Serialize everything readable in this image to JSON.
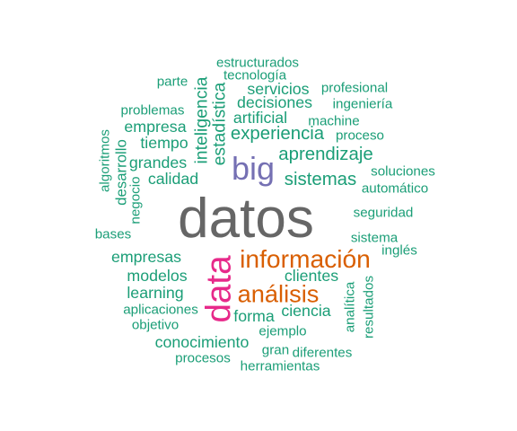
{
  "colors": {
    "teal": "#1b9e77",
    "orange": "#d95f02",
    "purple": "#7570b3",
    "magenta": "#e7298a",
    "gray": "#666666"
  },
  "words": [
    {
      "text": "datos",
      "weight": 1.0,
      "color": "gray",
      "vertical": false
    },
    {
      "text": "data",
      "weight": 0.55,
      "color": "magenta",
      "vertical": true
    },
    {
      "text": "big",
      "weight": 0.5,
      "color": "purple",
      "vertical": false
    },
    {
      "text": "información",
      "weight": 0.35,
      "color": "orange",
      "vertical": false
    },
    {
      "text": "análisis",
      "weight": 0.33,
      "color": "orange",
      "vertical": false
    },
    {
      "text": "sistemas",
      "weight": 0.2,
      "color": "teal",
      "vertical": false
    },
    {
      "text": "aprendizaje",
      "weight": 0.2,
      "color": "teal",
      "vertical": false
    },
    {
      "text": "experiencia",
      "weight": 0.2,
      "color": "teal",
      "vertical": false
    },
    {
      "text": "inteligencia",
      "weight": 0.18,
      "color": "teal",
      "vertical": true
    },
    {
      "text": "estadística",
      "weight": 0.18,
      "color": "teal",
      "vertical": true
    },
    {
      "text": "artificial",
      "weight": 0.15,
      "color": "teal",
      "vertical": false
    },
    {
      "text": "decisiones",
      "weight": 0.15,
      "color": "teal",
      "vertical": false
    },
    {
      "text": "servicios",
      "weight": 0.15,
      "color": "teal",
      "vertical": false
    },
    {
      "text": "empresa",
      "weight": 0.15,
      "color": "teal",
      "vertical": false
    },
    {
      "text": "tiempo",
      "weight": 0.15,
      "color": "teal",
      "vertical": false
    },
    {
      "text": "grandes",
      "weight": 0.15,
      "color": "teal",
      "vertical": false
    },
    {
      "text": "calidad",
      "weight": 0.15,
      "color": "teal",
      "vertical": false
    },
    {
      "text": "empresas",
      "weight": 0.15,
      "color": "teal",
      "vertical": false
    },
    {
      "text": "modelos",
      "weight": 0.15,
      "color": "teal",
      "vertical": false
    },
    {
      "text": "learning",
      "weight": 0.15,
      "color": "teal",
      "vertical": false
    },
    {
      "text": "clientes",
      "weight": 0.15,
      "color": "teal",
      "vertical": false
    },
    {
      "text": "ciencia",
      "weight": 0.15,
      "color": "teal",
      "vertical": false
    },
    {
      "text": "forma",
      "weight": 0.15,
      "color": "teal",
      "vertical": false
    },
    {
      "text": "conocimiento",
      "weight": 0.15,
      "color": "teal",
      "vertical": false
    },
    {
      "text": "desarrollo",
      "weight": 0.13,
      "color": "teal",
      "vertical": true
    },
    {
      "text": "estructurados",
      "weight": 0.1,
      "color": "teal",
      "vertical": false
    },
    {
      "text": "tecnología",
      "weight": 0.1,
      "color": "teal",
      "vertical": false
    },
    {
      "text": "parte",
      "weight": 0.1,
      "color": "teal",
      "vertical": false
    },
    {
      "text": "profesional",
      "weight": 0.1,
      "color": "teal",
      "vertical": false
    },
    {
      "text": "ingeniería",
      "weight": 0.1,
      "color": "teal",
      "vertical": false
    },
    {
      "text": "problemas",
      "weight": 0.1,
      "color": "teal",
      "vertical": false
    },
    {
      "text": "machine",
      "weight": 0.1,
      "color": "teal",
      "vertical": false
    },
    {
      "text": "proceso",
      "weight": 0.1,
      "color": "teal",
      "vertical": false
    },
    {
      "text": "algoritmos",
      "weight": 0.1,
      "color": "teal",
      "vertical": true
    },
    {
      "text": "negocio",
      "weight": 0.1,
      "color": "teal",
      "vertical": true
    },
    {
      "text": "soluciones",
      "weight": 0.1,
      "color": "teal",
      "vertical": false
    },
    {
      "text": "automático",
      "weight": 0.1,
      "color": "teal",
      "vertical": false
    },
    {
      "text": "seguridad",
      "weight": 0.1,
      "color": "teal",
      "vertical": false
    },
    {
      "text": "bases",
      "weight": 0.1,
      "color": "teal",
      "vertical": false
    },
    {
      "text": "sistema",
      "weight": 0.1,
      "color": "teal",
      "vertical": false
    },
    {
      "text": "inglés",
      "weight": 0.1,
      "color": "teal",
      "vertical": false
    },
    {
      "text": "analítica",
      "weight": 0.1,
      "color": "teal",
      "vertical": true
    },
    {
      "text": "resultados",
      "weight": 0.1,
      "color": "teal",
      "vertical": true
    },
    {
      "text": "aplicaciones",
      "weight": 0.1,
      "color": "teal",
      "vertical": false
    },
    {
      "text": "objetivo",
      "weight": 0.1,
      "color": "teal",
      "vertical": false
    },
    {
      "text": "ejemplo",
      "weight": 0.1,
      "color": "teal",
      "vertical": false
    },
    {
      "text": "gran",
      "weight": 0.1,
      "color": "teal",
      "vertical": false
    },
    {
      "text": "diferentes",
      "weight": 0.1,
      "color": "teal",
      "vertical": false
    },
    {
      "text": "procesos",
      "weight": 0.1,
      "color": "teal",
      "vertical": false
    },
    {
      "text": "herramientas",
      "weight": 0.1,
      "color": "teal",
      "vertical": false
    }
  ]
}
